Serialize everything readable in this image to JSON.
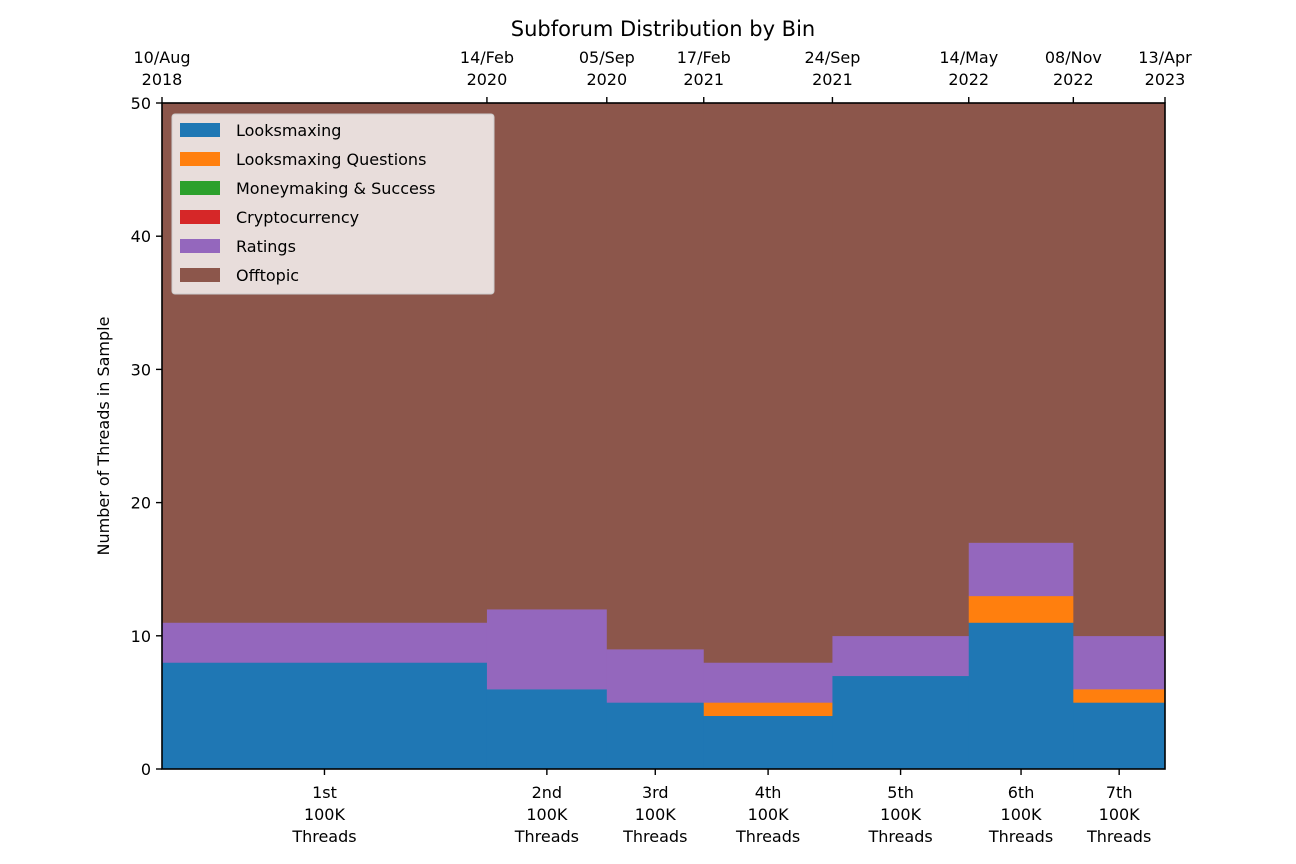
{
  "chart_data": {
    "type": "area",
    "stacked": true,
    "step": true,
    "title": "Subforum Distribution by Bin",
    "ylabel": "Number of Threads in Sample",
    "xlabel": "",
    "ylim": [
      0,
      50
    ],
    "yticks": [
      0,
      10,
      20,
      30,
      40,
      50
    ],
    "grid": false,
    "legend_position": "top-left",
    "bin_edges": [
      "2018-08-10",
      "2020-02-14",
      "2020-09-05",
      "2021-02-17",
      "2021-09-24",
      "2022-05-14",
      "2022-11-08",
      "2023-04-13"
    ],
    "top_tick_labels": [
      [
        "10/Aug",
        "2018"
      ],
      [
        "14/Feb",
        "2020"
      ],
      [
        "05/Sep",
        "2020"
      ],
      [
        "17/Feb",
        "2021"
      ],
      [
        "24/Sep",
        "2021"
      ],
      [
        "14/May",
        "2022"
      ],
      [
        "08/Nov",
        "2022"
      ],
      [
        "13/Apr",
        "2023"
      ]
    ],
    "categories": [
      [
        "1st",
        "100K",
        "Threads"
      ],
      [
        "2nd",
        "100K",
        "Threads"
      ],
      [
        "3rd",
        "100K",
        "Threads"
      ],
      [
        "4th",
        "100K",
        "Threads"
      ],
      [
        "5th",
        "100K",
        "Threads"
      ],
      [
        "6th",
        "100K",
        "Threads"
      ],
      [
        "7th",
        "100K",
        "Threads"
      ]
    ],
    "series": [
      {
        "name": "Looksmaxing",
        "color": "#1f77b4",
        "values": [
          8,
          6,
          5,
          4,
          7,
          11,
          5
        ]
      },
      {
        "name": "Looksmaxing Questions",
        "color": "#ff7f0e",
        "values": [
          0,
          0,
          0,
          1,
          0,
          2,
          1
        ]
      },
      {
        "name": "Moneymaking & Success",
        "color": "#2ca02c",
        "values": [
          0,
          0,
          0,
          0,
          0,
          0,
          0
        ]
      },
      {
        "name": "Cryptocurrency",
        "color": "#d62728",
        "values": [
          0,
          0,
          0,
          0,
          0,
          0,
          0
        ]
      },
      {
        "name": "Ratings",
        "color": "#9467bd",
        "values": [
          3,
          6,
          4,
          3,
          3,
          4,
          4
        ]
      },
      {
        "name": "Offtopic",
        "color": "#8c564b",
        "values": [
          39,
          38,
          41,
          42,
          40,
          33,
          40
        ]
      }
    ]
  }
}
